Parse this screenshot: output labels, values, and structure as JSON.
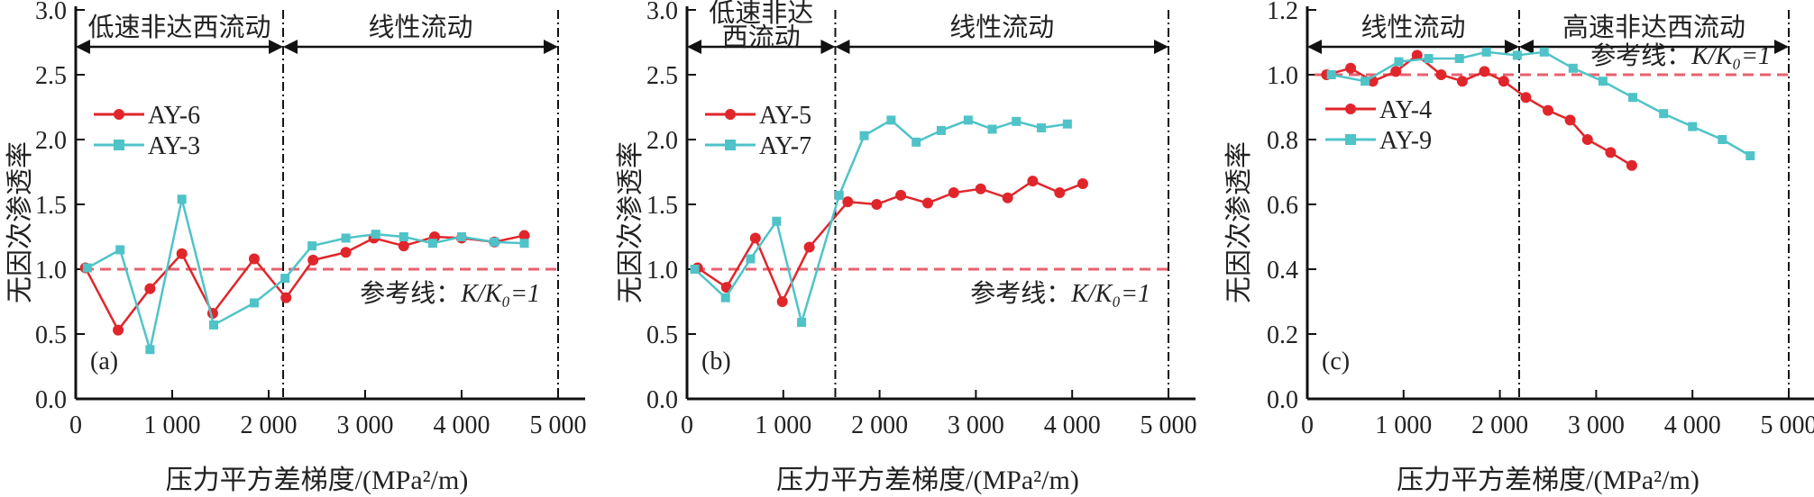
{
  "figure": {
    "colors": {
      "series_red": "#e0262b",
      "series_cyan": "#4fc3c8",
      "reference": "#e8606f",
      "axis": "#111111"
    }
  },
  "chart_data": [
    {
      "type": "line",
      "panel_label": "(a)",
      "xlabel": "压力平方差梯度/(MPa²/m)",
      "ylabel": "无因次渗透率",
      "xlim": [
        0,
        5000
      ],
      "ylim": [
        0,
        3.0
      ],
      "xticks": [
        0,
        1000,
        2000,
        3000,
        4000,
        5000
      ],
      "xtick_labels": [
        "0",
        "1 000",
        "2 000",
        "3 000",
        "4 000",
        "5 000"
      ],
      "yticks": [
        0.0,
        0.5,
        1.0,
        1.5,
        2.0,
        2.5,
        3.0
      ],
      "ytick_labels": [
        "0.0",
        "0.5",
        "1.0",
        "1.5",
        "2.0",
        "2.5",
        "3.0"
      ],
      "grid": false,
      "legend_position": "upper-left",
      "reference_line": {
        "y": 1.0,
        "label_prefix": "参考线：",
        "label_formula": "K/K₀=1"
      },
      "regions": [
        {
          "label": "低速非达西流动",
          "x_start": 0,
          "x_end": 2150
        },
        {
          "label": "线性流动",
          "x_start": 2150,
          "x_end": 5000
        }
      ],
      "boundaries": [
        2150,
        5000
      ],
      "series": [
        {
          "name": "AY-6",
          "marker": "circle",
          "color_key": "series_red",
          "x": [
            100,
            440,
            770,
            1100,
            1420,
            1850,
            2180,
            2460,
            2800,
            3090,
            3400,
            3720,
            4000,
            4340,
            4650
          ],
          "y": [
            1.01,
            0.53,
            0.85,
            1.12,
            0.66,
            1.08,
            0.78,
            1.07,
            1.13,
            1.24,
            1.18,
            1.25,
            1.24,
            1.21,
            1.26
          ]
        },
        {
          "name": "AY-3",
          "marker": "square",
          "color_key": "series_cyan",
          "x": [
            120,
            460,
            770,
            1100,
            1430,
            1850,
            2170,
            2450,
            2800,
            3110,
            3400,
            3700,
            4000,
            4340,
            4650
          ],
          "y": [
            1.01,
            1.15,
            0.38,
            1.54,
            0.57,
            0.74,
            0.93,
            1.18,
            1.24,
            1.27,
            1.25,
            1.2,
            1.25,
            1.21,
            1.2
          ]
        }
      ]
    },
    {
      "type": "line",
      "panel_label": "(b)",
      "xlabel": "压力平方差梯度/(MPa²/m)",
      "ylabel": "无因次渗透率",
      "xlim": [
        0,
        5000
      ],
      "ylim": [
        0,
        3.0
      ],
      "xticks": [
        0,
        1000,
        2000,
        3000,
        4000,
        5000
      ],
      "xtick_labels": [
        "0",
        "1 000",
        "2 000",
        "3 000",
        "4 000",
        "5 000"
      ],
      "yticks": [
        0.0,
        0.5,
        1.0,
        1.5,
        2.0,
        2.5,
        3.0
      ],
      "ytick_labels": [
        "0.0",
        "0.5",
        "1.0",
        "1.5",
        "2.0",
        "2.5",
        "3.0"
      ],
      "grid": false,
      "legend_position": "upper-left",
      "reference_line": {
        "y": 1.0,
        "label_prefix": "参考线：",
        "label_formula": "K/K₀=1"
      },
      "regions": [
        {
          "label": "低速非达西流动",
          "label_lines": [
            "低速非达",
            "西流动"
          ],
          "x_start": 0,
          "x_end": 1540
        },
        {
          "label": "线性流动",
          "x_start": 1540,
          "x_end": 5000
        }
      ],
      "boundaries": [
        1540,
        5000
      ],
      "series": [
        {
          "name": "AY-5",
          "marker": "circle",
          "color_key": "series_red",
          "x": [
            110,
            410,
            710,
            990,
            1270,
            1670,
            1970,
            2220,
            2500,
            2770,
            3050,
            3330,
            3590,
            3870,
            4110
          ],
          "y": [
            1.01,
            0.86,
            1.24,
            0.75,
            1.17,
            1.52,
            1.5,
            1.57,
            1.51,
            1.59,
            1.62,
            1.55,
            1.68,
            1.59,
            1.66
          ]
        },
        {
          "name": "AY-7",
          "marker": "square",
          "color_key": "series_cyan",
          "x": [
            80,
            400,
            660,
            930,
            1190,
            1580,
            1840,
            2120,
            2380,
            2640,
            2920,
            3170,
            3420,
            3680,
            3950
          ],
          "y": [
            1.0,
            0.78,
            1.08,
            1.37,
            0.59,
            1.57,
            2.03,
            2.15,
            1.98,
            2.07,
            2.15,
            2.08,
            2.14,
            2.09,
            2.12
          ]
        }
      ]
    },
    {
      "type": "line",
      "panel_label": "(c)",
      "xlabel": "压力平方差梯度/(MPa²/m)",
      "ylabel": "无因次渗透率",
      "xlim": [
        0,
        5000
      ],
      "ylim": [
        0,
        1.2
      ],
      "xticks": [
        0,
        1000,
        2000,
        3000,
        4000,
        5000
      ],
      "xtick_labels": [
        "0",
        "1 000",
        "2 000",
        "3 000",
        "4 000",
        "5 000"
      ],
      "yticks": [
        0.0,
        0.2,
        0.4,
        0.6,
        0.8,
        1.0,
        1.2
      ],
      "ytick_labels": [
        "0.0",
        "0.2",
        "0.4",
        "0.6",
        "0.8",
        "1.0",
        "1.2"
      ],
      "grid": false,
      "legend_position": "upper-left",
      "reference_line": {
        "y": 1.0,
        "label_prefix": "参考线：",
        "label_formula": "K/K₀=1"
      },
      "regions": [
        {
          "label": "线性流动",
          "x_start": 0,
          "x_end": 2200
        },
        {
          "label": "高速非达西流动",
          "x_start": 2200,
          "x_end": 5000
        }
      ],
      "boundaries": [
        2200,
        5000
      ],
      "series": [
        {
          "name": "AY-4",
          "marker": "circle",
          "color_key": "series_red",
          "x": [
            200,
            450,
            680,
            920,
            1140,
            1390,
            1610,
            1840,
            2040,
            2270,
            2500,
            2730,
            2910,
            3150,
            3370
          ],
          "y": [
            1.0,
            1.02,
            0.98,
            1.01,
            1.06,
            1.0,
            0.98,
            1.01,
            0.98,
            0.93,
            0.89,
            0.86,
            0.8,
            0.76,
            0.72
          ]
        },
        {
          "name": "AY-9",
          "marker": "square",
          "color_key": "series_cyan",
          "x": [
            250,
            600,
            950,
            1260,
            1580,
            1860,
            2180,
            2460,
            2760,
            3070,
            3380,
            3700,
            4000,
            4310,
            4600
          ],
          "y": [
            1.0,
            0.98,
            1.04,
            1.05,
            1.05,
            1.07,
            1.06,
            1.07,
            1.02,
            0.98,
            0.93,
            0.88,
            0.84,
            0.8,
            0.75
          ]
        }
      ]
    }
  ]
}
